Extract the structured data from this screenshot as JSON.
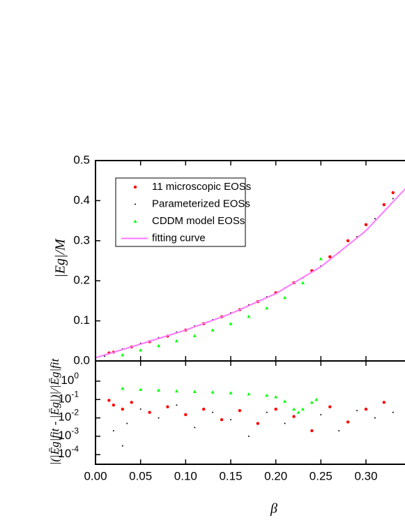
{
  "chart_data": [
    {
      "type": "scatter",
      "ylabel": "|Eg|/M",
      "xlim": [
        0,
        0.35
      ],
      "ylim": [
        0,
        0.5
      ],
      "xticks": [
        {
          "value": 0,
          "label": "0.00"
        },
        {
          "value": 0.05,
          "label": "0.05"
        },
        {
          "value": 0.1,
          "label": "0.10"
        },
        {
          "value": 0.15,
          "label": "0.15"
        },
        {
          "value": 0.2,
          "label": "0.20"
        },
        {
          "value": 0.25,
          "label": "0.25"
        },
        {
          "value": 0.3,
          "label": "0.30"
        }
      ],
      "yticks": [
        {
          "value": 0,
          "label": "0.0"
        },
        {
          "value": 0.1,
          "label": "0.1"
        },
        {
          "value": 0.2,
          "label": "0.2"
        },
        {
          "value": 0.3,
          "label": "0.3"
        },
        {
          "value": 0.4,
          "label": "0.4"
        },
        {
          "value": 0.5,
          "label": "0.5"
        }
      ],
      "legend": "upper left",
      "series": [
        {
          "name": "11 microscopic EOSs",
          "color": "#ff0000",
          "marker": "circle",
          "x": [
            0.015,
            0.02,
            0.04,
            0.06,
            0.08,
            0.1,
            0.12,
            0.14,
            0.16,
            0.18,
            0.2,
            0.22,
            0.24,
            0.26,
            0.28,
            0.3,
            0.32,
            0.33
          ],
          "values": [
            0.02,
            0.022,
            0.035,
            0.048,
            0.062,
            0.077,
            0.093,
            0.11,
            0.128,
            0.148,
            0.17,
            0.195,
            0.225,
            0.26,
            0.3,
            0.34,
            0.39,
            0.42
          ]
        },
        {
          "name": "Parameterized EOSs",
          "color": "#000000",
          "marker": "dot",
          "x": [
            0.01,
            0.03,
            0.05,
            0.07,
            0.09,
            0.11,
            0.13,
            0.15,
            0.17,
            0.19,
            0.21,
            0.23,
            0.25,
            0.27,
            0.29,
            0.31,
            0.33
          ],
          "values": [
            0.012,
            0.03,
            0.044,
            0.058,
            0.072,
            0.087,
            0.103,
            0.12,
            0.14,
            0.16,
            0.182,
            0.207,
            0.237,
            0.27,
            0.31,
            0.355,
            0.405
          ]
        },
        {
          "name": "CDDM model EOSs",
          "color": "#00ff00",
          "marker": "triangle",
          "x": [
            0.03,
            0.05,
            0.07,
            0.09,
            0.11,
            0.13,
            0.15,
            0.17,
            0.19,
            0.21,
            0.23,
            0.25
          ],
          "values": [
            0.015,
            0.027,
            0.038,
            0.05,
            0.063,
            0.077,
            0.093,
            0.111,
            0.132,
            0.158,
            0.195,
            0.255
          ]
        },
        {
          "name": "fitting curve",
          "color": "#ff77ff",
          "marker": "line",
          "x": [
            0,
            0.05,
            0.1,
            0.15,
            0.2,
            0.25,
            0.3,
            0.35
          ],
          "values": [
            0.008,
            0.042,
            0.077,
            0.118,
            0.168,
            0.235,
            0.325,
            0.445
          ]
        }
      ]
    },
    {
      "type": "scatter",
      "ylabel": "|(|Ēg|fit - |Ēg|)|/|Ēg|fit",
      "xlabel": "β",
      "xlim": [
        0,
        0.35
      ],
      "ylim": [
        3e-05,
        12.6
      ],
      "log_y": true,
      "xticks": [
        {
          "value": 0,
          "label": "0.00"
        },
        {
          "value": 0.05,
          "label": "0.05"
        },
        {
          "value": 0.1,
          "label": "0.10"
        },
        {
          "value": 0.15,
          "label": "0.15"
        },
        {
          "value": 0.2,
          "label": "0.20"
        },
        {
          "value": 0.25,
          "label": "0.25"
        },
        {
          "value": 0.3,
          "label": "0.30"
        }
      ],
      "yticks": [
        {
          "value": 0.0001,
          "label": "10",
          "exponent": "-4"
        },
        {
          "value": 0.001,
          "label": "10",
          "exponent": "-3"
        },
        {
          "value": 0.01,
          "label": "10",
          "exponent": "-2"
        },
        {
          "value": 0.1,
          "label": "10",
          "exponent": "-1"
        },
        {
          "value": 1,
          "label": "10",
          "exponent": "0"
        }
      ],
      "series": [
        {
          "color": "#000000",
          "marker": "dot",
          "x": [
            0.02,
            0.03,
            0.035,
            0.05,
            0.07,
            0.09,
            0.11,
            0.13,
            0.15,
            0.17,
            0.19,
            0.21,
            0.23,
            0.25,
            0.27,
            0.29,
            0.31,
            0.33
          ],
          "values": [
            0.002,
            0.0003,
            0.005,
            0.03,
            0.01,
            0.05,
            0.003,
            0.02,
            0.008,
            0.001,
            0.02,
            0.005,
            0.03,
            0.015,
            0.002,
            0.025,
            0.01,
            0.02
          ]
        },
        {
          "color": "#ff0000",
          "marker": "circle",
          "x": [
            0.015,
            0.02,
            0.03,
            0.04,
            0.06,
            0.08,
            0.1,
            0.12,
            0.14,
            0.16,
            0.18,
            0.2,
            0.22,
            0.24,
            0.26,
            0.28,
            0.3,
            0.32
          ],
          "values": [
            0.09,
            0.05,
            0.03,
            0.07,
            0.02,
            0.04,
            0.015,
            0.03,
            0.008,
            0.025,
            0.005,
            0.03,
            0.012,
            0.002,
            0.04,
            0.006,
            0.03,
            0.07
          ]
        },
        {
          "color": "#00ff00",
          "marker": "triangle",
          "x": [
            0.03,
            0.05,
            0.07,
            0.09,
            0.11,
            0.13,
            0.15,
            0.17,
            0.19,
            0.2,
            0.21,
            0.22,
            0.225,
            0.23,
            0.24,
            0.245
          ],
          "values": [
            0.4,
            0.35,
            0.32,
            0.29,
            0.27,
            0.25,
            0.23,
            0.2,
            0.17,
            0.14,
            0.08,
            0.03,
            0.02,
            0.03,
            0.07,
            0.1
          ]
        }
      ]
    }
  ]
}
